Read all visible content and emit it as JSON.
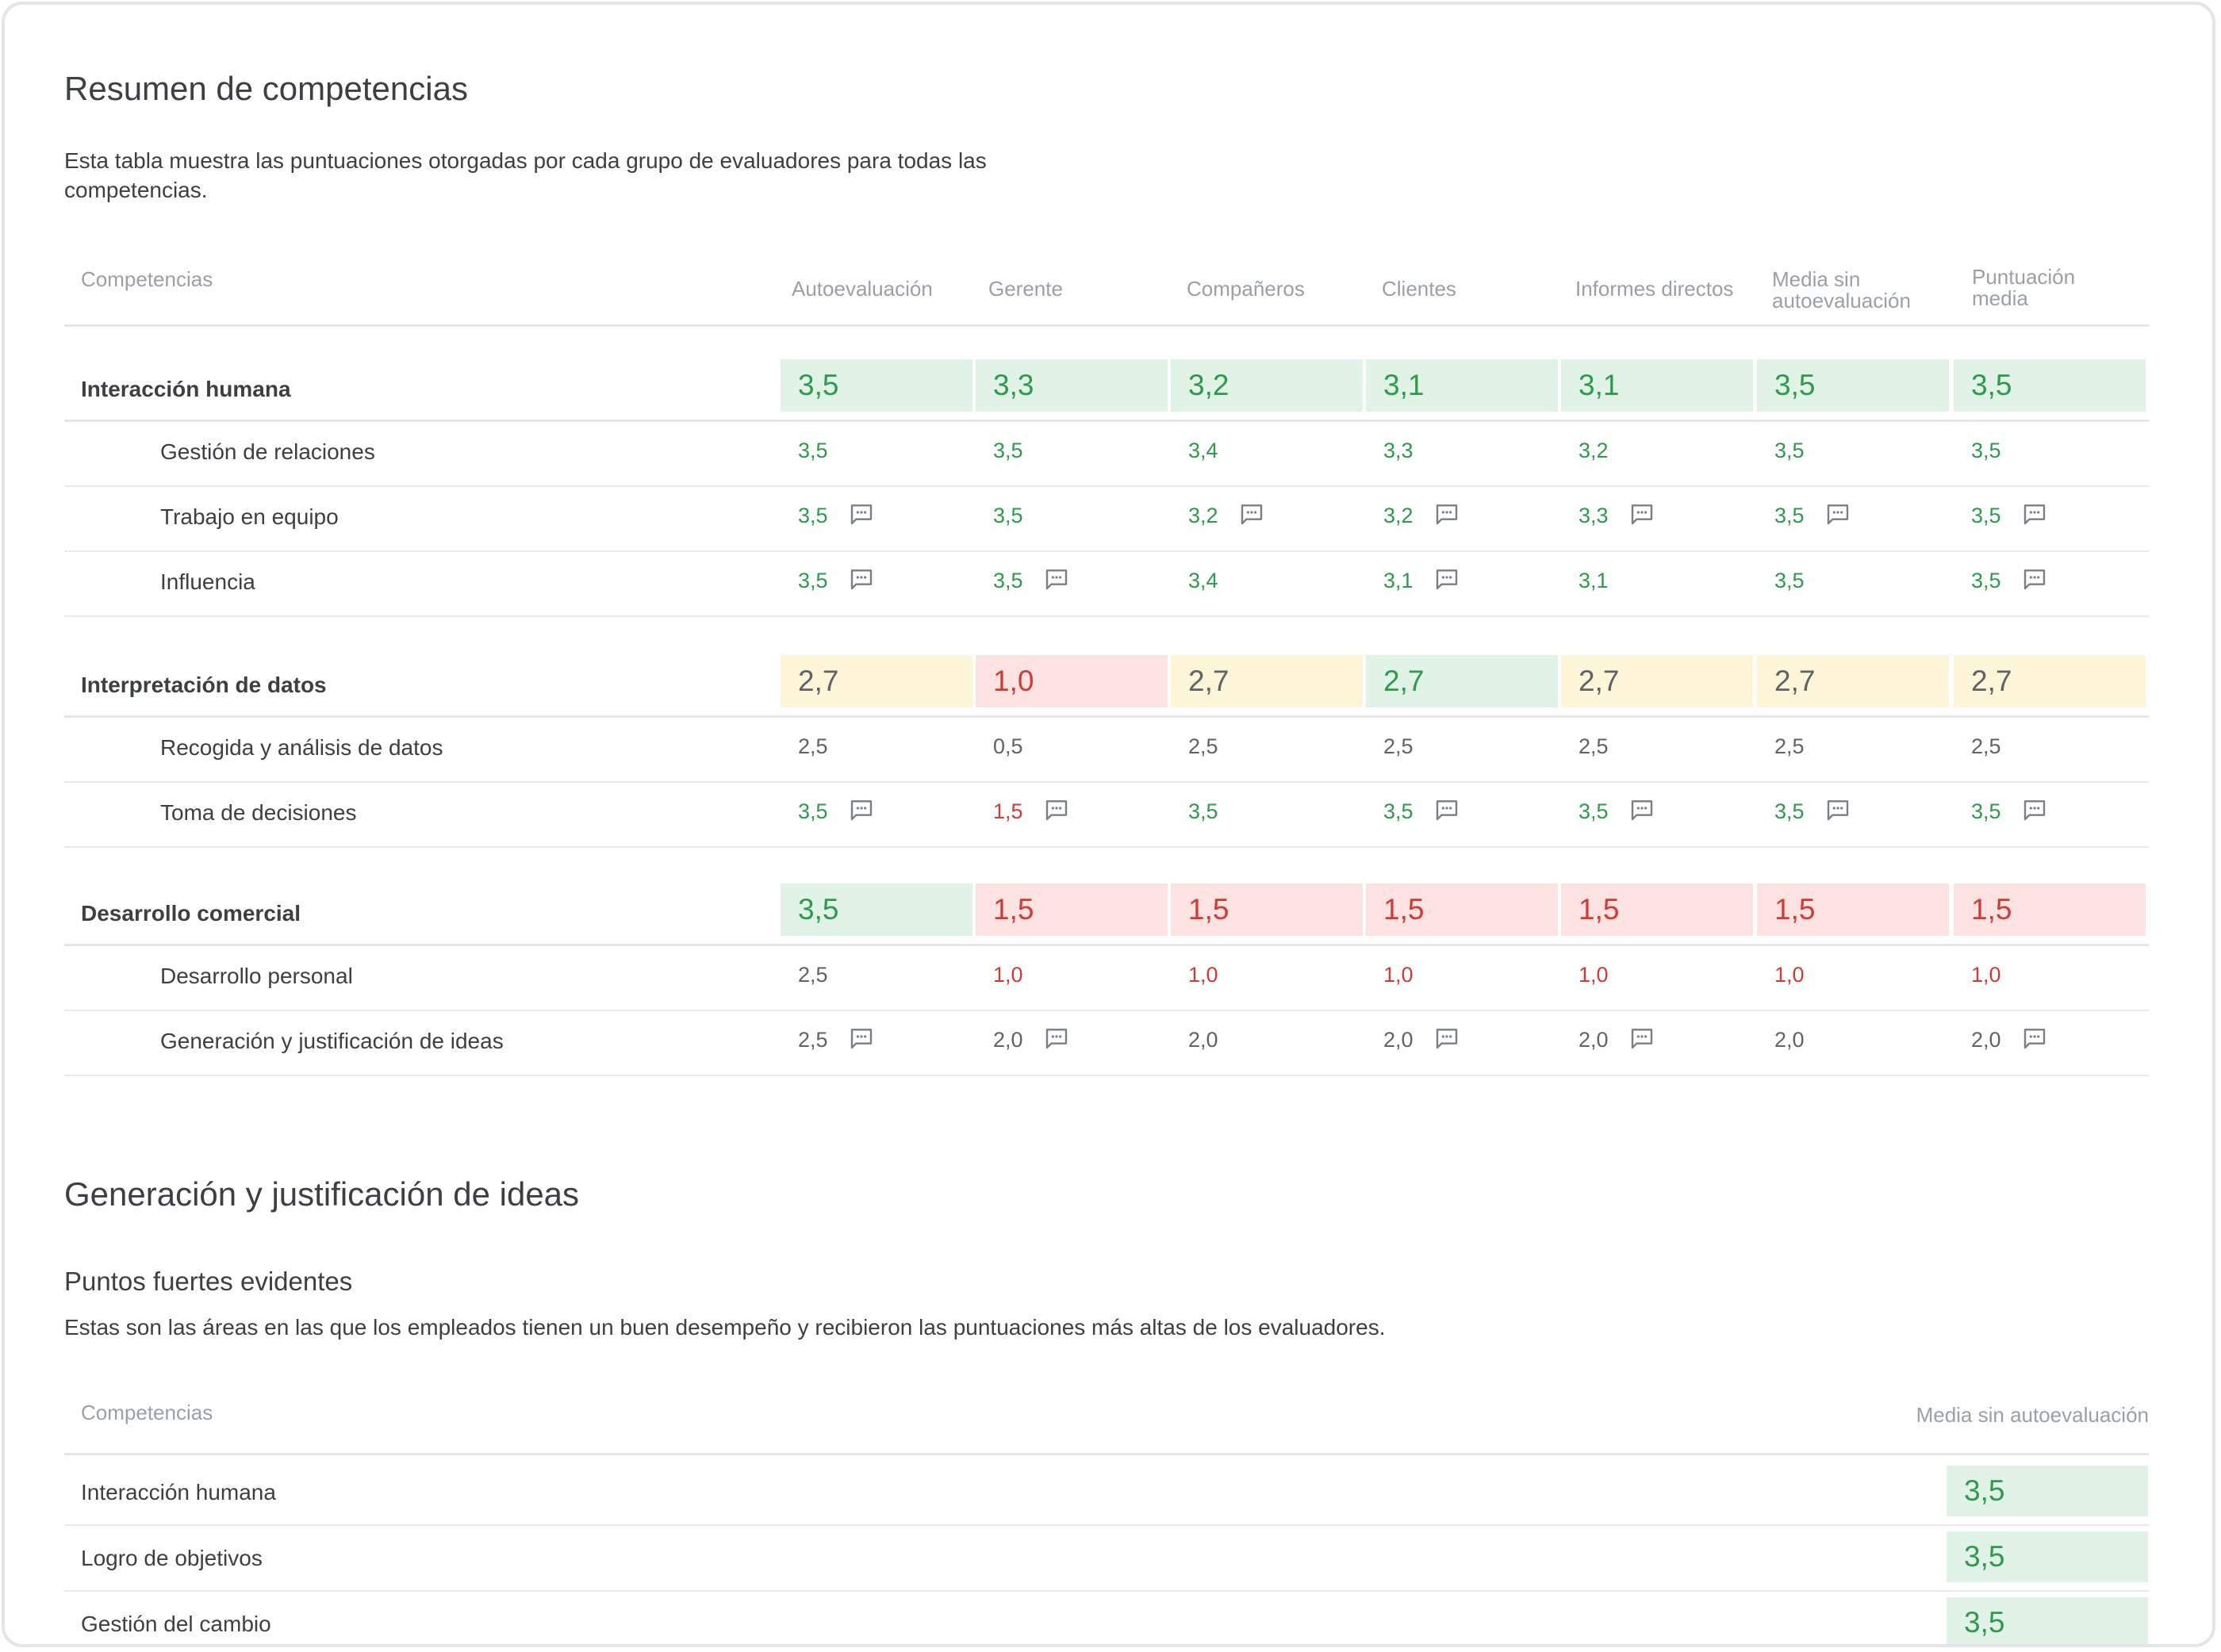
{
  "summary": {
    "title": "Resumen de competencias",
    "description": "Esta tabla muestra las puntuaciones otorgadas por cada grupo de evaluadores para todas las competencias.",
    "columns": {
      "competencias": "Competencias",
      "auto": "Autoevaluación",
      "gerente": "Gerente",
      "companeros": "Compañeros",
      "clientes": "Clientes",
      "informes": "Informes directos",
      "media_sin_1": "Media sin",
      "media_sin_2": "autoevaluación",
      "puntuacion_1": "Puntuación",
      "puntuacion_2": "media"
    },
    "categories": [
      {
        "name": "Interacción humana",
        "scores": [
          "3,5",
          "3,3",
          "3,2",
          "3,1",
          "3,1",
          "3,5",
          "3,5"
        ],
        "colors": [
          "green",
          "green",
          "green",
          "green",
          "green",
          "green",
          "green"
        ],
        "items": [
          {
            "name": "Gestión de relaciones",
            "values": [
              "3,5",
              "3,5",
              "3,4",
              "3,3",
              "3,2",
              "3,5",
              "3,5"
            ],
            "tones": [
              "green",
              "green",
              "green",
              "green",
              "green",
              "green",
              "green"
            ],
            "comments": [
              false,
              false,
              false,
              false,
              false,
              false,
              false
            ]
          },
          {
            "name": "Trabajo en equipo",
            "values": [
              "3,5",
              "3,5",
              "3,2",
              "3,2",
              "3,3",
              "3,5",
              "3,5"
            ],
            "tones": [
              "green",
              "green",
              "green",
              "green",
              "green",
              "green",
              "green"
            ],
            "comments": [
              true,
              false,
              true,
              true,
              true,
              true,
              true
            ]
          },
          {
            "name": "Influencia",
            "values": [
              "3,5",
              "3,5",
              "3,4",
              "3,1",
              "3,1",
              "3,5",
              "3,5"
            ],
            "tones": [
              "green",
              "green",
              "green",
              "green",
              "green",
              "green",
              "green"
            ],
            "comments": [
              true,
              true,
              false,
              true,
              false,
              false,
              true
            ]
          }
        ]
      },
      {
        "name": "Interpretación de datos",
        "scores": [
          "2,7",
          "1,0",
          "2,7",
          "2,7",
          "2,7",
          "2,7",
          "2,7"
        ],
        "colors": [
          "yellow",
          "red",
          "yellow",
          "green",
          "yellow",
          "yellow",
          "yellow"
        ],
        "items": [
          {
            "name": "Recogida y análisis de datos",
            "values": [
              "2,5",
              "0,5",
              "2,5",
              "2,5",
              "2,5",
              "2,5",
              "2,5"
            ],
            "tones": [
              "gray",
              "gray",
              "gray",
              "gray",
              "gray",
              "gray",
              "gray"
            ],
            "comments": [
              false,
              false,
              false,
              false,
              false,
              false,
              false
            ]
          },
          {
            "name": "Toma de decisiones",
            "values": [
              "3,5",
              "1,5",
              "3,5",
              "3,5",
              "3,5",
              "3,5",
              "3,5"
            ],
            "tones": [
              "green",
              "red",
              "green",
              "green",
              "green",
              "green",
              "green"
            ],
            "comments": [
              true,
              true,
              false,
              true,
              true,
              true,
              true
            ]
          }
        ]
      },
      {
        "name": "Desarrollo comercial",
        "scores": [
          "3,5",
          "1,5",
          "1,5",
          "1,5",
          "1,5",
          "1,5",
          "1,5"
        ],
        "colors": [
          "green",
          "red",
          "red",
          "red",
          "red",
          "red",
          "red"
        ],
        "items": [
          {
            "name": "Desarrollo personal",
            "values": [
              "2,5",
              "1,0",
              "1,0",
              "1,0",
              "1,0",
              "1,0",
              "1,0"
            ],
            "tones": [
              "gray",
              "red",
              "red",
              "red",
              "red",
              "red",
              "red"
            ],
            "comments": [
              false,
              false,
              false,
              false,
              false,
              false,
              false
            ]
          },
          {
            "name": "Generación y justificación de ideas",
            "values": [
              "2,5",
              "2,0",
              "2,0",
              "2,0",
              "2,0",
              "2,0",
              "2,0"
            ],
            "tones": [
              "gray",
              "gray",
              "gray",
              "gray",
              "gray",
              "gray",
              "gray"
            ],
            "comments": [
              true,
              true,
              false,
              true,
              true,
              false,
              true
            ]
          }
        ]
      }
    ]
  },
  "detail": {
    "title": "Generación y justificación de ideas",
    "subtitle": "Puntos fuertes evidentes",
    "description": "Estas son las áreas en las que los empleados tienen un buen desempeño y recibieron las puntuaciones más altas de los evaluadores.",
    "columns": {
      "competencias": "Competencias",
      "media": "Media sin autoevaluación"
    },
    "rows": [
      {
        "name": "Interacción humana",
        "value": "3,5"
      },
      {
        "name": "Logro de objetivos",
        "value": "3,5"
      },
      {
        "name": "Gestión del cambio",
        "value": "3,5"
      }
    ]
  },
  "colors": {
    "green_bg": "#e1f3e7",
    "green_text": "#2e9a4c",
    "yellow_bg": "#fdf5d8",
    "red_bg": "#fde2e2",
    "red_text": "#d23a33",
    "gray_text": "#5f6368",
    "icon": "comment-icon"
  }
}
